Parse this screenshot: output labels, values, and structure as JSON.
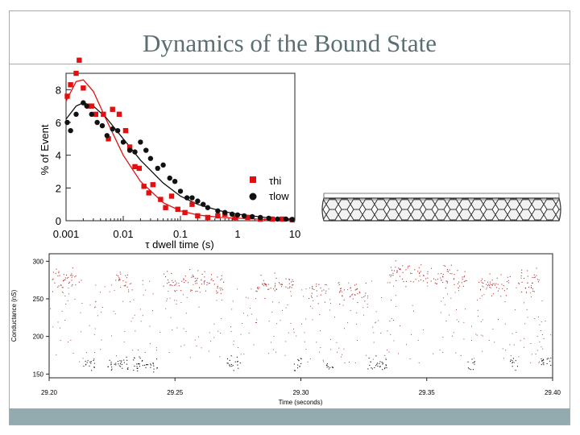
{
  "slide": {
    "title": "Dynamics of the Bound State"
  },
  "colors": {
    "frame": "#9bb0b4",
    "title": "#5b6f73",
    "footer": "#93abae",
    "red": "#e01010",
    "black": "#111111"
  },
  "chart_data": [
    {
      "type": "scatter",
      "log_x": true,
      "xlabel": "τ dwell time (s)",
      "ylabel": "% of Event",
      "xlim": [
        0.001,
        10
      ],
      "ylim": [
        0,
        9
      ],
      "x_ticks": [
        "0.001",
        "0.01",
        "0.1",
        "1",
        "10"
      ],
      "y_ticks": [
        "0",
        "2",
        "4",
        "6",
        "8"
      ],
      "legend_position": "right",
      "series": [
        {
          "name": "τhi",
          "marker": "square",
          "color": "#e01010",
          "points": [
            [
              0.00105,
              7.6
            ],
            [
              0.0012,
              8.3
            ],
            [
              0.0015,
              9.0
            ],
            [
              0.0017,
              9.8
            ],
            [
              0.002,
              8.1
            ],
            [
              0.0025,
              7.0
            ],
            [
              0.0028,
              7.0
            ],
            [
              0.0033,
              6.5
            ],
            [
              0.0045,
              6.5
            ],
            [
              0.0055,
              5.0
            ],
            [
              0.0065,
              6.8
            ],
            [
              0.0085,
              6.5
            ],
            [
              0.011,
              5.5
            ],
            [
              0.013,
              4.5
            ],
            [
              0.016,
              3.3
            ],
            [
              0.019,
              3.2
            ],
            [
              0.023,
              2.1
            ],
            [
              0.028,
              1.7
            ],
            [
              0.033,
              2.2
            ],
            [
              0.045,
              1.3
            ],
            [
              0.055,
              0.8
            ],
            [
              0.07,
              1.5
            ],
            [
              0.09,
              0.7
            ],
            [
              0.12,
              0.5
            ],
            [
              0.16,
              1.0
            ],
            [
              0.2,
              0.3
            ],
            [
              0.3,
              0.2
            ],
            [
              0.45,
              0.3
            ],
            [
              0.6,
              0.4
            ],
            [
              0.9,
              0.2
            ],
            [
              1.5,
              0.2
            ],
            [
              2.5,
              0.1
            ],
            [
              4,
              0.1
            ],
            [
              6,
              0.1
            ],
            [
              9,
              0.05
            ]
          ],
          "fit": [
            [
              0.001,
              7.3
            ],
            [
              0.0015,
              8.5
            ],
            [
              0.002,
              8.6
            ],
            [
              0.003,
              7.9
            ],
            [
              0.005,
              6.2
            ],
            [
              0.01,
              4.0
            ],
            [
              0.02,
              2.4
            ],
            [
              0.05,
              1.1
            ],
            [
              0.1,
              0.6
            ],
            [
              0.2,
              0.35
            ],
            [
              0.5,
              0.2
            ],
            [
              1,
              0.15
            ],
            [
              3,
              0.08
            ],
            [
              10,
              0.03
            ]
          ]
        },
        {
          "name": "τlow",
          "marker": "circle",
          "color": "#111111",
          "points": [
            [
              0.00105,
              6.0
            ],
            [
              0.0012,
              5.5
            ],
            [
              0.0015,
              6.5
            ],
            [
              0.002,
              7.2
            ],
            [
              0.0023,
              7.0
            ],
            [
              0.0028,
              6.5
            ],
            [
              0.0035,
              6.0
            ],
            [
              0.0043,
              5.8
            ],
            [
              0.0052,
              5.2
            ],
            [
              0.0065,
              5.6
            ],
            [
              0.008,
              5.5
            ],
            [
              0.01,
              4.8
            ],
            [
              0.013,
              4.3
            ],
            [
              0.016,
              4.2
            ],
            [
              0.02,
              4.8
            ],
            [
              0.025,
              4.3
            ],
            [
              0.03,
              3.8
            ],
            [
              0.04,
              3.2
            ],
            [
              0.05,
              3.4
            ],
            [
              0.065,
              2.6
            ],
            [
              0.08,
              2.4
            ],
            [
              0.1,
              1.8
            ],
            [
              0.13,
              1.4
            ],
            [
              0.16,
              1.4
            ],
            [
              0.2,
              1.2
            ],
            [
              0.25,
              1.0
            ],
            [
              0.3,
              0.8
            ],
            [
              0.45,
              0.6
            ],
            [
              0.6,
              0.5
            ],
            [
              0.8,
              0.4
            ],
            [
              1.0,
              0.35
            ],
            [
              1.3,
              0.3
            ],
            [
              1.8,
              0.25
            ],
            [
              2.5,
              0.2
            ],
            [
              3.5,
              0.15
            ],
            [
              5,
              0.1
            ],
            [
              7,
              0.1
            ],
            [
              9,
              0.08
            ]
          ],
          "fit": [
            [
              0.001,
              6.2
            ],
            [
              0.0015,
              7.0
            ],
            [
              0.002,
              7.2
            ],
            [
              0.003,
              7.0
            ],
            [
              0.005,
              6.3
            ],
            [
              0.01,
              5.0
            ],
            [
              0.02,
              3.7
            ],
            [
              0.05,
              2.3
            ],
            [
              0.1,
              1.5
            ],
            [
              0.2,
              1.0
            ],
            [
              0.5,
              0.6
            ],
            [
              1,
              0.4
            ],
            [
              3,
              0.2
            ],
            [
              10,
              0.08
            ]
          ]
        }
      ]
    },
    {
      "type": "scatter",
      "xlabel": "Time (seconds)",
      "ylabel": "Conductance (nS)",
      "xlim": [
        29.2,
        29.4
      ],
      "ylim": [
        145,
        310
      ],
      "x_ticks": [
        "29.20",
        "29.25",
        "29.30",
        "29.35",
        "29.40"
      ],
      "y_ticks": [
        "150",
        "200",
        "250",
        "300"
      ],
      "states": [
        {
          "name": "high",
          "color": "#b83030",
          "level_segments": [
            [
              29.2,
              29.213,
              276
            ],
            [
              29.226,
              29.233,
              272
            ],
            [
              29.245,
              29.262,
              275
            ],
            [
              29.262,
              29.27,
              270
            ],
            [
              29.282,
              29.297,
              268
            ],
            [
              29.303,
              29.31,
              262
            ],
            [
              29.315,
              29.326,
              258
            ],
            [
              29.334,
              29.348,
              285
            ],
            [
              29.348,
              29.36,
              282
            ],
            [
              29.36,
              29.366,
              275
            ],
            [
              29.37,
              29.383,
              270
            ],
            [
              29.386,
              29.395,
              275
            ]
          ]
        },
        {
          "name": "low",
          "color": "#111111",
          "level_segments": [
            [
              29.213,
              29.218,
              165
            ],
            [
              29.223,
              29.226,
              164
            ],
            [
              29.226,
              29.243,
              163
            ],
            [
              29.27,
              29.276,
              165
            ],
            [
              29.297,
              29.301,
              162
            ],
            [
              29.31,
              29.313,
              160
            ],
            [
              29.326,
              29.334,
              163
            ],
            [
              29.366,
              29.369,
              162
            ],
            [
              29.383,
              29.386,
              164
            ],
            [
              29.395,
              29.4,
              165
            ]
          ]
        }
      ]
    }
  ]
}
